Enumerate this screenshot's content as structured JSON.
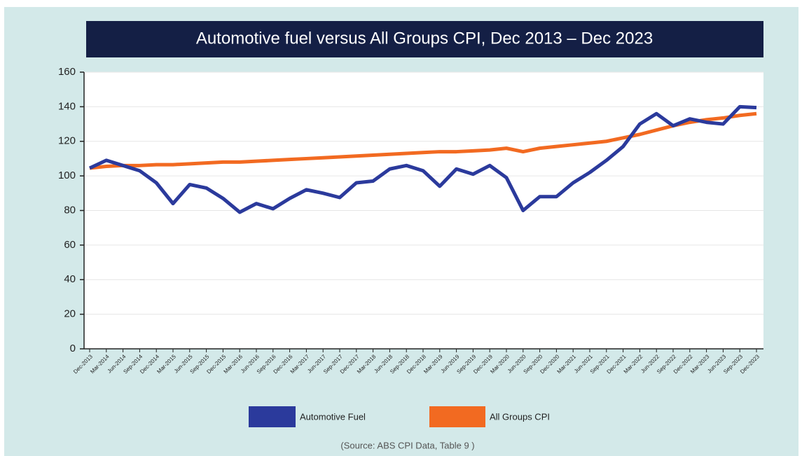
{
  "chart_data": {
    "type": "line",
    "title": "Automotive fuel versus All Groups CPI, Dec 2013 – Dec 2023",
    "source": "(Source: ABS CPI Data, Table 9 )",
    "categories": [
      "Dec-2013",
      "Mar-2014",
      "Jun-2014",
      "Sep-2014",
      "Dec-2014",
      "Mar-2015",
      "Jun-2015",
      "Sep-2015",
      "Dec-2015",
      "Mar-2016",
      "Jun-2016",
      "Sep-2016",
      "Dec-2016",
      "Mar-2017",
      "Jun-2017",
      "Sep-2017",
      "Dec-2017",
      "Mar-2018",
      "Jun-2018",
      "Sep-2018",
      "Dec-2018",
      "Mar-2019",
      "Jun-2019",
      "Sep-2019",
      "Dec-2019",
      "Mar-2020",
      "Jun-2020",
      "Sep-2020",
      "Dec-2020",
      "Mar-2021",
      "Jun-2021",
      "Sep-2021",
      "Dec-2021",
      "Mar-2022",
      "Jun-2022",
      "Sep-2022",
      "Dec-2022",
      "Mar-2023",
      "Jun-2023",
      "Sep-2023",
      "Dec-2023"
    ],
    "series": [
      {
        "name": "Automotive Fuel",
        "color": "#2b3a9c",
        "values": [
          104.5,
          109,
          106,
          103,
          96,
          84,
          95,
          93,
          87,
          79,
          84,
          81,
          87,
          92,
          90,
          87.5,
          96,
          97,
          104,
          106,
          103,
          94,
          104,
          101,
          106,
          99,
          80,
          88,
          88,
          96,
          102,
          109,
          117,
          130,
          136,
          129,
          133,
          131,
          130,
          140,
          139.5
        ]
      },
      {
        "name": "All Groups CPI",
        "color": "#f26a21",
        "values": [
          104.5,
          105.5,
          106,
          106,
          106.5,
          106.5,
          107,
          107.5,
          108,
          108,
          108.5,
          109,
          109.5,
          110,
          110.5,
          111,
          111.5,
          112,
          112.5,
          113,
          113.5,
          114,
          114,
          114.5,
          115,
          116,
          114,
          116,
          117,
          118,
          119,
          120,
          122,
          124,
          126.5,
          129,
          131,
          132.5,
          133.5,
          135,
          136
        ]
      }
    ],
    "ylim": [
      0,
      160
    ],
    "yticks": [
      0,
      20,
      40,
      60,
      80,
      100,
      120,
      140,
      160
    ],
    "grid": true
  }
}
